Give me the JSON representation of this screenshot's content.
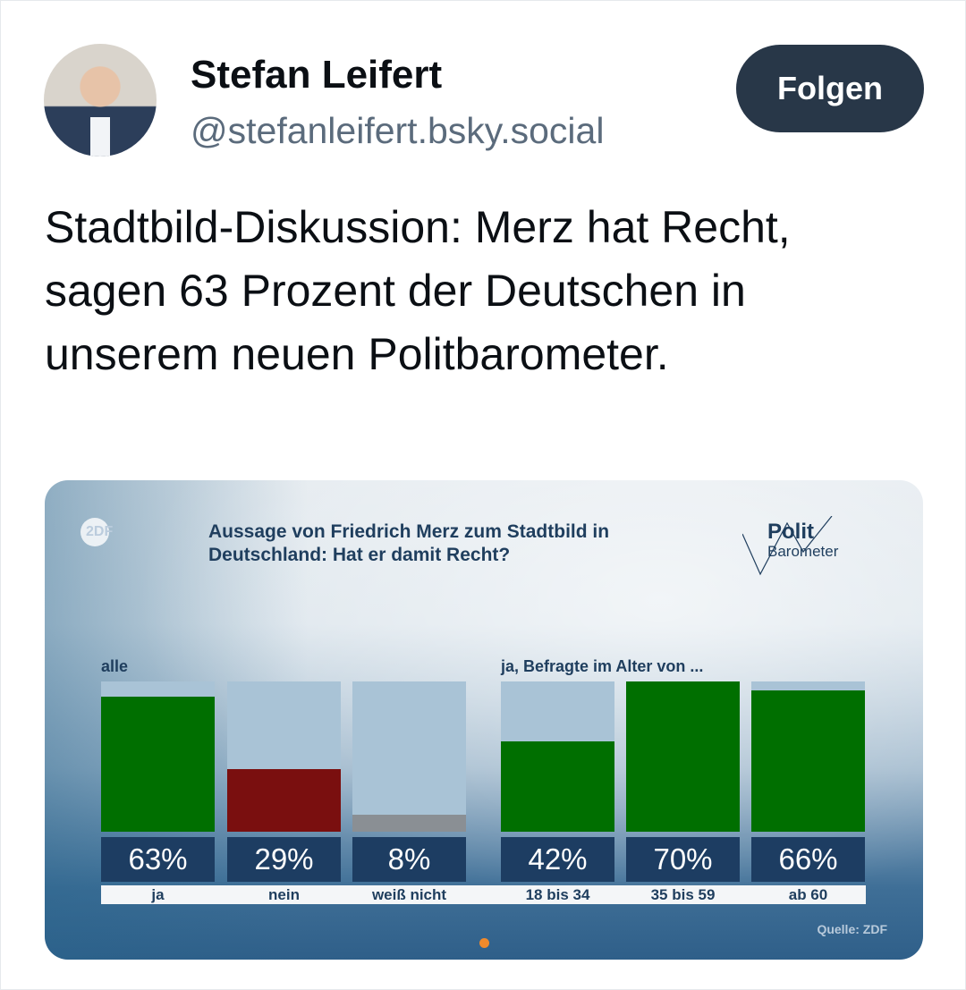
{
  "author": {
    "name": "Stefan Leifert",
    "handle": "@stefanleifert.bsky.social",
    "follow_label": "Folgen"
  },
  "post": {
    "text": "Stadtbild-Diskussion: Merz hat Recht, sagen 63 Prozent der Deutschen in unserem neuen Politbarometer."
  },
  "image": {
    "broadcaster_logo": "ZDF",
    "logo_line1": "Polit",
    "logo_line2": "Barometer",
    "source": "Quelle: ZDF"
  },
  "chart_data": {
    "type": "bar",
    "title": "Aussage von Friedrich Merz zum Stadtbild in Deutschland: Hat er damit Recht?",
    "groups": [
      {
        "label": "alle",
        "start": 0
      },
      {
        "label": "ja, Befragte im Alter von ...",
        "start": 3
      }
    ],
    "categories": [
      "ja",
      "nein",
      "weiß nicht",
      "18 bis 34",
      "35 bis 59",
      "ab 60"
    ],
    "values": [
      63,
      29,
      8,
      42,
      70,
      66
    ],
    "value_labels": [
      "63%",
      "29%",
      "8%",
      "42%",
      "70%",
      "66%"
    ],
    "colors": [
      "#006f00",
      "#7a0f0f",
      "#8a8f94",
      "#006f00",
      "#006f00",
      "#006f00"
    ],
    "ylim": [
      0,
      70
    ],
    "unit": "%"
  }
}
